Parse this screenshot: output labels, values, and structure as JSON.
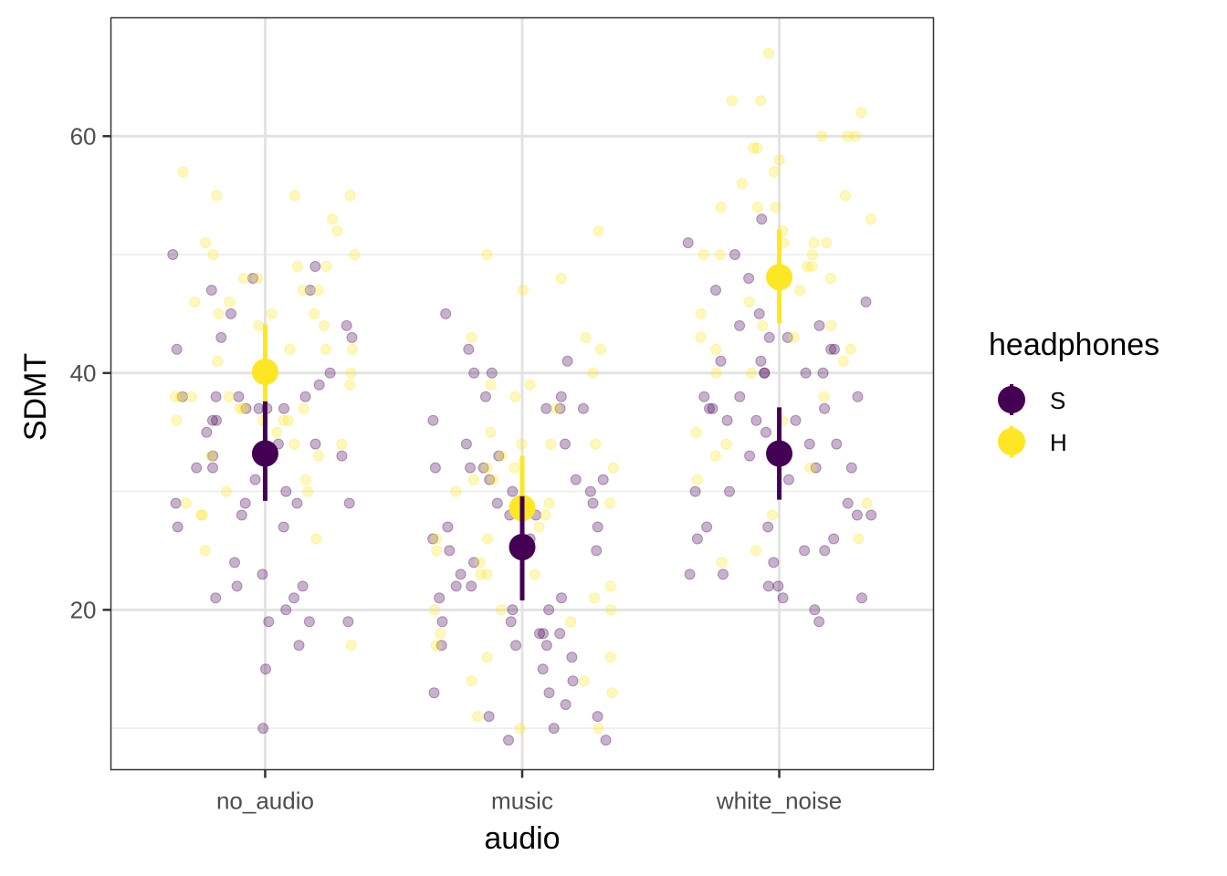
{
  "chart_data": {
    "type": "scatter",
    "xlabel": "audio",
    "ylabel": "SDMT",
    "categories": [
      "no_audio",
      "music",
      "white_noise"
    ],
    "ylim": [
      6.5,
      70
    ],
    "y_ticks": [
      20,
      40,
      60
    ],
    "grid": true,
    "legend": {
      "title": "headphones",
      "placement": "right",
      "entries": [
        {
          "label": "S",
          "color": "#440154"
        },
        {
          "label": "H",
          "color": "#FDE725"
        }
      ]
    },
    "series": [
      {
        "name": "S",
        "color": "#440154",
        "points": [
          {
            "category": "no_audio",
            "values": [
              50,
              49,
              48,
              47,
              47,
              45,
              44,
              43,
              43,
              42,
              40,
              39,
              38,
              38,
              38,
              38,
              37,
              37,
              37,
              37,
              36,
              36,
              35,
              34,
              34,
              33,
              33,
              32,
              32,
              31,
              30,
              29,
              29,
              29,
              29,
              28,
              27,
              27,
              24,
              23,
              22,
              22,
              21,
              21,
              20,
              19,
              19,
              19,
              17,
              15,
              10
            ]
          },
          {
            "category": "music",
            "values": [
              45,
              42,
              41,
              40,
              40,
              38,
              38,
              37,
              37,
              37,
              36,
              34,
              34,
              33,
              32,
              32,
              32,
              31,
              31,
              31,
              30,
              30,
              29,
              29,
              28,
              28,
              27,
              27,
              26,
              26,
              25,
              25,
              24,
              23,
              22,
              22,
              21,
              21,
              20,
              20,
              19,
              19,
              18,
              18,
              18,
              17,
              17,
              17,
              16,
              15,
              14,
              13,
              13,
              12,
              11,
              11,
              10,
              9,
              9
            ]
          },
          {
            "category": "white_noise",
            "values": [
              53,
              51,
              50,
              48,
              47,
              46,
              45,
              44,
              44,
              43,
              43,
              42,
              42,
              41,
              41,
              40,
              40,
              40,
              40,
              38,
              38,
              38,
              37,
              37,
              37,
              36,
              36,
              36,
              35,
              34,
              34,
              33,
              33,
              32,
              32,
              31,
              30,
              30,
              29,
              28,
              28,
              27,
              27,
              26,
              26,
              25,
              25,
              24,
              23,
              23,
              22,
              22,
              21,
              21,
              20,
              19
            ]
          }
        ],
        "mean": [
          33.2,
          25.3,
          33.2
        ],
        "ci_low": [
          29.2,
          20.8,
          29.3
        ],
        "ci_high": [
          37.6,
          29.6,
          37.1
        ]
      },
      {
        "name": "H",
        "color": "#FDE725",
        "points": [
          {
            "category": "no_audio",
            "values": [
              57,
              55,
              55,
              55,
              53,
              52,
              51,
              50,
              50,
              49,
              49,
              48,
              48,
              47,
              47,
              46,
              46,
              45,
              45,
              45,
              44,
              44,
              42,
              42,
              42,
              41,
              40,
              40,
              39,
              38,
              38,
              38,
              38,
              37,
              37,
              37,
              36,
              36,
              36,
              36,
              35,
              34,
              34,
              33,
              33,
              31,
              30,
              30,
              29,
              28,
              28,
              26,
              25,
              17
            ]
          },
          {
            "category": "music",
            "values": [
              52,
              50,
              48,
              47,
              43,
              43,
              42,
              40,
              39,
              39,
              38,
              37,
              35,
              34,
              34,
              34,
              33,
              32,
              32,
              32,
              31,
              31,
              30,
              29,
              29,
              28,
              28,
              27,
              26,
              26,
              25,
              25,
              24,
              23,
              23,
              23,
              22,
              21,
              20,
              20,
              20,
              19,
              18,
              17,
              16,
              16,
              14,
              14,
              13,
              11,
              10,
              10
            ]
          },
          {
            "category": "white_noise",
            "values": [
              67,
              63,
              63,
              62,
              60,
              60,
              60,
              59,
              59,
              58,
              57,
              56,
              55,
              54,
              54,
              54,
              53,
              52,
              51,
              51,
              51,
              50,
              50,
              50,
              49,
              49,
              48,
              48,
              47,
              46,
              45,
              44,
              44,
              43,
              43,
              42,
              42,
              41,
              40,
              40,
              38,
              36,
              35,
              34,
              33,
              32,
              31,
              29,
              28,
              26,
              25,
              24
            ]
          }
        ],
        "mean": [
          40.1,
          28.6,
          48.1
        ],
        "ci_low": [
          35.7,
          24.2,
          44.2
        ],
        "ci_high": [
          44.1,
          33.0,
          52.1
        ]
      }
    ]
  }
}
